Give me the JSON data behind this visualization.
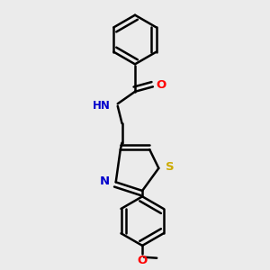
{
  "background_color": "#ebebeb",
  "bond_color": "#000000",
  "atom_colors": {
    "O": "#ff0000",
    "N": "#0000cc",
    "S": "#ccaa00",
    "H": "#008080"
  },
  "figsize": [
    3.0,
    3.0
  ],
  "dpi": 100
}
